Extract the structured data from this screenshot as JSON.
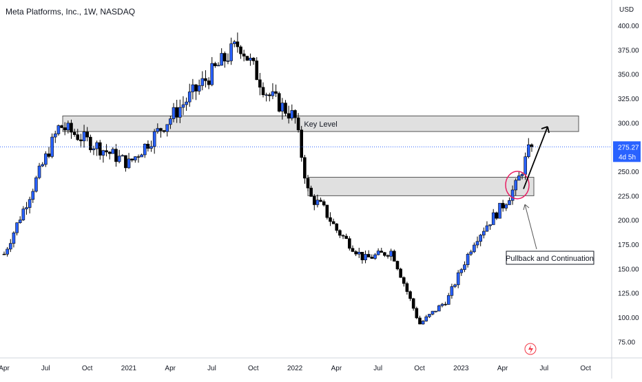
{
  "header": {
    "title": "Meta Platforms, Inc., 1W, NASDAQ"
  },
  "price_axis": {
    "currency": "USD"
  },
  "last_price": {
    "value": "275.27",
    "countdown": "4d 5h",
    "color": "#2962ff"
  },
  "colors": {
    "up": "#2962ff",
    "down": "#000000",
    "zone_fill": "#e0e0e0",
    "circle": "#e91e63"
  },
  "chart_data": {
    "type": "candlestick",
    "title": "Meta Platforms, Inc., 1W, NASDAQ",
    "x_ticks": [
      "Apr",
      "Jul",
      "Oct",
      "2021",
      "Apr",
      "Jul",
      "Oct",
      "2022",
      "Apr",
      "Jul",
      "Oct",
      "2023",
      "Apr",
      "Jul",
      "Oct"
    ],
    "y_ticks": [
      "400.00",
      "375.00",
      "350.00",
      "325.00",
      "300.00",
      "275.00",
      "250.00",
      "225.00",
      "200.00",
      "175.00",
      "150.00",
      "125.00",
      "100.00",
      "75.00"
    ],
    "ylim": [
      57,
      420
    ],
    "x_range": [
      "2020-04",
      "2023-11"
    ],
    "last_close": 275.27,
    "key_points": [
      {
        "x": "2020-04",
        "y": 165
      },
      {
        "x": "2020-08",
        "y": 297
      },
      {
        "x": "2021-01",
        "y": 258
      },
      {
        "x": "2021-04",
        "y": 305
      },
      {
        "x": "2021-09",
        "y": 382
      },
      {
        "x": "2021-11",
        "y": 330
      },
      {
        "x": "2022-01",
        "y": 305
      },
      {
        "x": "2022-02",
        "y": 225
      },
      {
        "x": "2022-03",
        "y": 213
      },
      {
        "x": "2022-04",
        "y": 190
      },
      {
        "x": "2022-06",
        "y": 160
      },
      {
        "x": "2022-08",
        "y": 168
      },
      {
        "x": "2022-10",
        "y": 93
      },
      {
        "x": "2022-12",
        "y": 118
      },
      {
        "x": "2023-02",
        "y": 180
      },
      {
        "x": "2023-04",
        "y": 215
      },
      {
        "x": "2023-05",
        "y": 236
      },
      {
        "x": "2023-06",
        "y": 275.27
      }
    ],
    "zones": [
      {
        "label": "Key Level",
        "y_low": 291,
        "y_high": 307,
        "from": "2020-08",
        "to": "2023-08"
      },
      {
        "label": "",
        "y_low": 225,
        "y_high": 244,
        "from": "2022-02",
        "to": "2023-06"
      }
    ],
    "annotations": [
      {
        "text": "Pullback and Continuation"
      }
    ]
  }
}
